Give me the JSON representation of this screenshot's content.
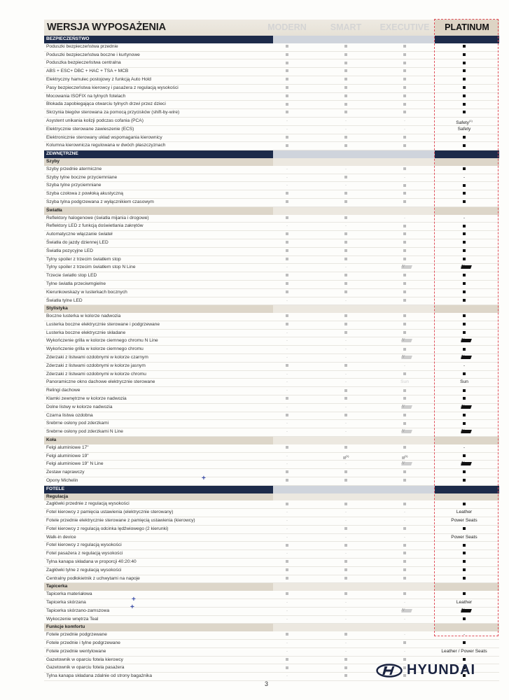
{
  "header": {
    "title": "WERSJA WYPOSAŻENIA",
    "columns": [
      "MODERN",
      "SMART",
      "EXECUTIVE",
      "PLATINUM"
    ]
  },
  "legend_codes": {
    "y": "included",
    "-": "not available",
    "N": "N Line badge"
  },
  "colors": {
    "navy": "#1d2b4a",
    "subsection": "#ddd6c9",
    "highlight_border": "#e0505a"
  },
  "rows": [
    {
      "type": "sec",
      "label": "BEZPIECZEŃSTWO"
    },
    {
      "label": "Poduszki bezpieczeństwa przednie",
      "v": [
        "y",
        "y",
        "y",
        "y"
      ]
    },
    {
      "label": "Poduszki bezpieczeństwa boczne i kurtynowe",
      "v": [
        "y",
        "y",
        "y",
        "y"
      ]
    },
    {
      "label": "Poduszka bezpieczeństwa centralna",
      "v": [
        "y",
        "y",
        "y",
        "y"
      ]
    },
    {
      "label": "ABS + ESC+ DBC + HAC + TSA + MCB",
      "v": [
        "y",
        "y",
        "y",
        "y"
      ]
    },
    {
      "label": "Elektryczny hamulec postojowy z funkcją Auto Hold",
      "v": [
        "y",
        "y",
        "y",
        "y"
      ]
    },
    {
      "label": "Pasy bezpieczeństwa kierowcy i pasażera z regulacją wysokości",
      "v": [
        "y",
        "y",
        "y",
        "y"
      ]
    },
    {
      "label": "Mocowania ISOFIX na tylnych fotelach",
      "v": [
        "y",
        "y",
        "y",
        "y"
      ]
    },
    {
      "label": "Blokada zapobiegająca otwarciu tylnych drzwi przez dzieci",
      "v": [
        "y",
        "y",
        "y",
        "y"
      ]
    },
    {
      "label": "Skrzynia biegów sterowana za pomocą przycisków (shift-by-wire)",
      "v": [
        "y",
        "y",
        "y",
        "y"
      ]
    },
    {
      "label": "Asystent unikania kolizji podczas cofania (PCA)",
      "v": [
        "-",
        "-",
        "-",
        "Safety"
      ],
      "sup": "(1)"
    },
    {
      "label": "Elektrycznie sterowane zawieszenie (ECS)",
      "v": [
        "-",
        "-",
        "-",
        "Safety"
      ]
    },
    {
      "label": "Elektronicznie sterowany układ wspomagania kierownicy",
      "v": [
        "y",
        "y",
        "y",
        "y"
      ]
    },
    {
      "label": "Kolumna kierownicza regulowana w dwóch płaszczyznach",
      "v": [
        "y",
        "y",
        "y",
        "y"
      ]
    },
    {
      "type": "sec",
      "label": "ZEWNĘTRZNE"
    },
    {
      "type": "sub",
      "label": "Szyby"
    },
    {
      "label": "Szyby przednie atermiczne",
      "v": [
        "-",
        "-",
        "y",
        "y"
      ]
    },
    {
      "label": "Szyby tylne boczne przyciemniane",
      "v": [
        "-",
        "y",
        "-",
        "-"
      ]
    },
    {
      "label": "Szyba tylne przyciemniane",
      "v": [
        "-",
        "-",
        "y",
        "y"
      ]
    },
    {
      "label": "Szyba czołowa z powłoką akustyczną",
      "v": [
        "y",
        "y",
        "y",
        "y"
      ]
    },
    {
      "label": "Szyba tylna podgrzewana z wyłącznikiem czasowym",
      "v": [
        "y",
        "y",
        "y",
        "y"
      ]
    },
    {
      "type": "sub",
      "label": "Światła"
    },
    {
      "label": "Reflektory halogenowe (światła mijania i drogowe)",
      "v": [
        "y",
        "y",
        "-",
        "-"
      ]
    },
    {
      "label": "Reflektory LED z funkcją doświetlania zakrętów",
      "v": [
        "-",
        "-",
        "y",
        "y"
      ]
    },
    {
      "label": "Automatyczne włączanie świateł",
      "v": [
        "y",
        "y",
        "y",
        "y"
      ]
    },
    {
      "label": "Światła do jazdy dziennej LED",
      "v": [
        "y",
        "y",
        "y",
        "y"
      ]
    },
    {
      "label": "Światła pozycyjne LED",
      "v": [
        "y",
        "y",
        "y",
        "y"
      ]
    },
    {
      "label": "Tylny spoiler z trzecim światłem stop",
      "v": [
        "y",
        "y",
        "y",
        "y"
      ]
    },
    {
      "label": "Tylny spoiler z trzecim światłem stop N Line",
      "v": [
        "-",
        "-",
        "N",
        "N"
      ]
    },
    {
      "label": "Trzecie światło stop LED",
      "v": [
        "y",
        "y",
        "y",
        "y"
      ]
    },
    {
      "label": "Tylne światła przeciwmgielne",
      "v": [
        "y",
        "y",
        "y",
        "y"
      ]
    },
    {
      "label": "Kierunkowskazy w lusterkach bocznych",
      "v": [
        "y",
        "y",
        "y",
        "y"
      ]
    },
    {
      "label": "Światła tylne LED",
      "v": [
        "-",
        "-",
        "y",
        "y"
      ]
    },
    {
      "type": "sub",
      "label": "Stylistyka"
    },
    {
      "label": "Boczne lusterka w kolorze nadwozia",
      "v": [
        "y",
        "y",
        "y",
        "y"
      ]
    },
    {
      "label": "Lusterka boczne elektrycznie sterowane i podgrzewane",
      "v": [
        "y",
        "y",
        "y",
        "y"
      ]
    },
    {
      "label": "Lusterka boczne elektrycznie składane",
      "v": [
        "-",
        "y",
        "y",
        "y"
      ]
    },
    {
      "label": "Wykończenie grilla w kolorze ciemnego chromu N Line",
      "v": [
        "-",
        "-",
        "N",
        "N"
      ]
    },
    {
      "label": "Wykończenie grilla w kolorze ciemnego chromu",
      "v": [
        "-",
        "-",
        "y",
        "y"
      ]
    },
    {
      "label": "Zderzaki z listwami ozdobnymi w kolorze czarnym",
      "v": [
        "-",
        "-",
        "N",
        "N"
      ]
    },
    {
      "label": "Zderzaki z listwami ozdobnymi w kolorze jasnym",
      "v": [
        "y",
        "y",
        "-",
        "-"
      ]
    },
    {
      "label": "Zderzaki z listwami ozdobnymi w kolorze chromu",
      "v": [
        "-",
        "-",
        "y",
        "y"
      ]
    },
    {
      "label": "Panoramiczne okno dachowe elektrycznie sterowane",
      "v": [
        "-",
        "-",
        "Sun",
        "Sun"
      ]
    },
    {
      "label": "Relingi dachowe",
      "v": [
        "-",
        "y",
        "y",
        "y"
      ]
    },
    {
      "label": "Klamki zewnętrzne w kolorze nadwozia",
      "v": [
        "y",
        "y",
        "y",
        "y"
      ]
    },
    {
      "label": "Dolne listwy w kolorze nadwozia",
      "v": [
        "-",
        "-",
        "N",
        "N"
      ]
    },
    {
      "label": "Czarna listwa ozdobna",
      "v": [
        "y",
        "y",
        "y",
        "y"
      ]
    },
    {
      "label": "Srebrne osłony pod zderzkami",
      "v": [
        "-",
        "-",
        "y",
        "y"
      ]
    },
    {
      "label": "Srebrne osłony pod zderzkami N Line",
      "v": [
        "-",
        "-",
        "N",
        "N"
      ]
    },
    {
      "type": "sub",
      "label": "Koła"
    },
    {
      "label": "Felgi aluminiowe 17\"",
      "v": [
        "y",
        "y",
        "y",
        "-"
      ]
    },
    {
      "label": "Felgi aluminiowe 19\"",
      "v": [
        "-",
        "y",
        "y",
        "y"
      ],
      "supcols": "(1)"
    },
    {
      "label": "Felgi aluminiowe 19\" N Line",
      "v": [
        "-",
        "-",
        "N",
        "N"
      ]
    },
    {
      "label": "Zestaw naprawczy",
      "v": [
        "y",
        "y",
        "y",
        "y"
      ]
    },
    {
      "label": "Opony Michelin",
      "v": [
        "y",
        "y",
        "y",
        "y"
      ]
    },
    {
      "type": "sec",
      "label": "FOTELE"
    },
    {
      "type": "sub",
      "label": "Regulacja"
    },
    {
      "label": "Zagłówki przednie z regulacją wysokości",
      "v": [
        "y",
        "y",
        "y",
        "y"
      ]
    },
    {
      "label": "Fotel kierowcy z pamięcia ustawienia (elektrycznie sterowany)",
      "v": [
        "-",
        "-",
        "-",
        "Leather"
      ]
    },
    {
      "label": "Fotele przednie elektrycznie sterowane z pamięcią ustawienia (kierowcy)",
      "v": [
        "-",
        "-",
        "-",
        "Power Seats"
      ]
    },
    {
      "label": "Fotel kierowcy z regulacją odcinka lędźwiowego (2 kierunki)",
      "v": [
        "-",
        "y",
        "y",
        "y"
      ]
    },
    {
      "label": "Walk-in device",
      "v": [
        "-",
        "-",
        "-",
        "Power Seats"
      ]
    },
    {
      "label": "Fotel kierowcy z regulacją wysokości",
      "v": [
        "y",
        "y",
        "y",
        "y"
      ]
    },
    {
      "label": "Fotel pasażera z regulacją wysokości",
      "v": [
        "-",
        "-",
        "y",
        "y"
      ]
    },
    {
      "label": "Tylna kanapa składana w proporcji 40:20:40",
      "v": [
        "y",
        "y",
        "y",
        "y"
      ]
    },
    {
      "label": "Zagłówki tylne z regulacją wysokości",
      "v": [
        "y",
        "y",
        "y",
        "y"
      ]
    },
    {
      "label": "Centralny podłokietnik z uchwytami na napoje",
      "v": [
        "y",
        "y",
        "y",
        "y"
      ]
    },
    {
      "type": "sub",
      "label": "Tapicerka"
    },
    {
      "label": "Tapicerka materiałowa",
      "v": [
        "y",
        "y",
        "y",
        "y"
      ]
    },
    {
      "label": "Tapicerka skórzana",
      "v": [
        "-",
        "-",
        "-",
        "Leather"
      ]
    },
    {
      "label": "Tapicerka skórzano-zamszowa",
      "v": [
        "-",
        "-",
        "N",
        "N"
      ]
    },
    {
      "label": "Wykoczenie wnętrza Teal",
      "v": [
        "-",
        "-",
        "-",
        "y"
      ]
    },
    {
      "type": "sub",
      "label": "Funkcje komfortu"
    },
    {
      "label": "Fotele przednie podgrzewane",
      "v": [
        "y",
        "y",
        "-",
        "-"
      ]
    },
    {
      "label": "Fotele przednie i tylne podgrzewane",
      "v": [
        "-",
        "-",
        "y",
        "y"
      ]
    },
    {
      "label": "Fotele przednie wentylowane",
      "v": [
        "-",
        "-",
        "-",
        "Leather / Power Seats"
      ]
    },
    {
      "label": "Gazetownik w oparciu fotela kierowcy",
      "v": [
        "y",
        "y",
        "y",
        "y"
      ]
    },
    {
      "label": "Gazetownik w oparciu fotela pasażera",
      "v": [
        "y",
        "y",
        "y",
        "y"
      ]
    },
    {
      "label": "Tylna kanapa składana zdalnie od strony bagażnika",
      "v": [
        "-",
        "y",
        "y",
        "y"
      ]
    }
  ],
  "footer": {
    "page_number": "3",
    "brand": "HYUNDAI"
  }
}
